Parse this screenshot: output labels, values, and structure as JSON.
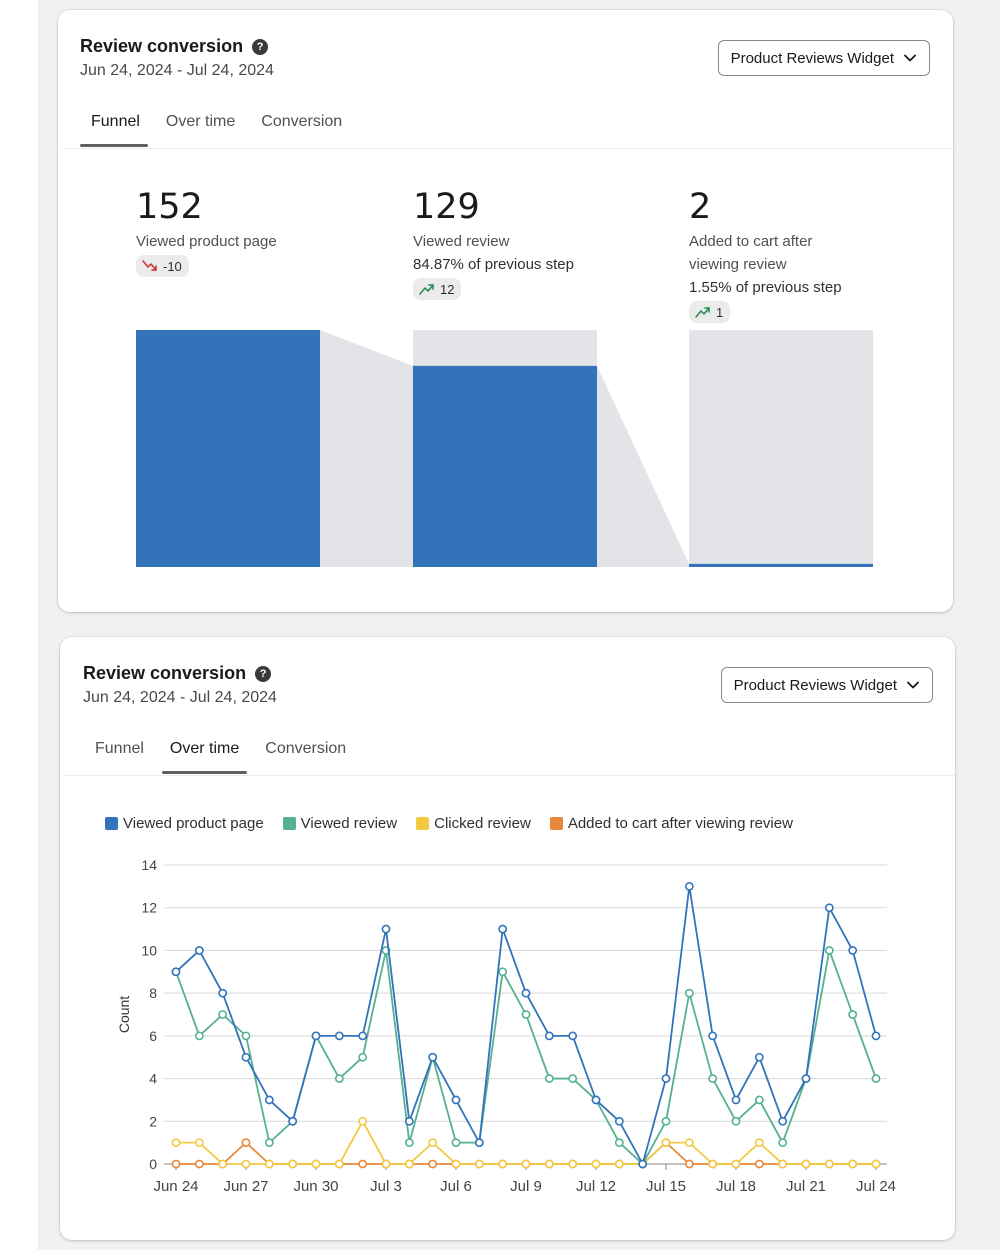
{
  "cards": [
    {
      "title": "Review conversion",
      "date_range": "Jun 24, 2024 - Jul 24, 2024",
      "dropdown": "Product Reviews Widget",
      "tabs": [
        "Funnel",
        "Over time",
        "Conversion"
      ],
      "active_tab": "Funnel"
    },
    {
      "title": "Review conversion",
      "date_range": "Jun 24, 2024 - Jul 24, 2024",
      "dropdown": "Product Reviews Widget",
      "tabs": [
        "Funnel",
        "Over time",
        "Conversion"
      ],
      "active_tab": "Over time"
    }
  ],
  "funnel": {
    "steps": [
      {
        "value": "152",
        "label": "Viewed product page",
        "label_line2": "",
        "pct": "",
        "trend": "down",
        "change": "-10"
      },
      {
        "value": "129",
        "label": "Viewed review",
        "label_line2": "",
        "pct": "84.87% of previous step",
        "trend": "up",
        "change": "12"
      },
      {
        "value": "2",
        "label": "Added to cart after",
        "label_line2": "viewing review",
        "pct": "1.55% of previous step",
        "trend": "up",
        "change": "1"
      }
    ]
  },
  "chart_data": [
    {
      "type": "bar",
      "title": "Review conversion funnel",
      "categories": [
        "Viewed product page",
        "Viewed review",
        "Added to cart after viewing review"
      ],
      "values": [
        152,
        129,
        2
      ],
      "ylim": [
        0,
        152
      ],
      "colors": {
        "bar": "#3273ba",
        "track": "#e2e4e7"
      }
    },
    {
      "type": "line",
      "title": "Review conversion over time",
      "xlabel": "",
      "ylabel": "Count",
      "ylim": [
        0,
        14
      ],
      "yticks": [
        0,
        2,
        4,
        6,
        8,
        10,
        12,
        14
      ],
      "grid": true,
      "legend_position": "top-left",
      "x": [
        "Jun 24",
        "Jun 25",
        "Jun 26",
        "Jun 27",
        "Jun 28",
        "Jun 29",
        "Jun 30",
        "Jul 1",
        "Jul 2",
        "Jul 3",
        "Jul 4",
        "Jul 5",
        "Jul 6",
        "Jul 7",
        "Jul 8",
        "Jul 9",
        "Jul 10",
        "Jul 11",
        "Jul 12",
        "Jul 13",
        "Jul 14",
        "Jul 15",
        "Jul 16",
        "Jul 17",
        "Jul 18",
        "Jul 19",
        "Jul 20",
        "Jul 21",
        "Jul 22",
        "Jul 23",
        "Jul 24"
      ],
      "xtick_labels": [
        "Jun 24",
        "Jun 27",
        "Jun 30",
        "Jul 3",
        "Jul 6",
        "Jul 9",
        "Jul 12",
        "Jul 15",
        "Jul 18",
        "Jul 21",
        "Jul 24"
      ],
      "series": [
        {
          "name": "Viewed product page",
          "color": "#3273ba",
          "values": [
            9,
            10,
            8,
            5,
            3,
            2,
            6,
            6,
            6,
            11,
            2,
            5,
            3,
            1,
            11,
            8,
            6,
            6,
            3,
            2,
            0,
            4,
            13,
            6,
            3,
            5,
            2,
            4,
            12,
            10,
            6
          ]
        },
        {
          "name": "Viewed review",
          "color": "#56b18f",
          "values": [
            9,
            6,
            7,
            6,
            1,
            2,
            6,
            4,
            5,
            10,
            1,
            5,
            1,
            1,
            9,
            7,
            4,
            4,
            3,
            1,
            0,
            2,
            8,
            4,
            2,
            3,
            1,
            4,
            10,
            7,
            4
          ]
        },
        {
          "name": "Clicked review",
          "color": "#f3c843",
          "values": [
            1,
            1,
            0,
            0,
            0,
            0,
            0,
            0,
            2,
            0,
            0,
            1,
            0,
            0,
            0,
            0,
            0,
            0,
            0,
            0,
            0,
            1,
            1,
            0,
            0,
            1,
            0,
            0,
            0,
            0,
            0
          ]
        },
        {
          "name": "Added to cart after viewing review",
          "color": "#e8873a",
          "values": [
            0,
            0,
            0,
            1,
            0,
            0,
            0,
            0,
            0,
            0,
            0,
            0,
            0,
            0,
            0,
            0,
            0,
            0,
            0,
            0,
            0,
            1,
            0,
            0,
            0,
            0,
            0,
            0,
            0,
            0,
            0
          ]
        }
      ]
    }
  ]
}
